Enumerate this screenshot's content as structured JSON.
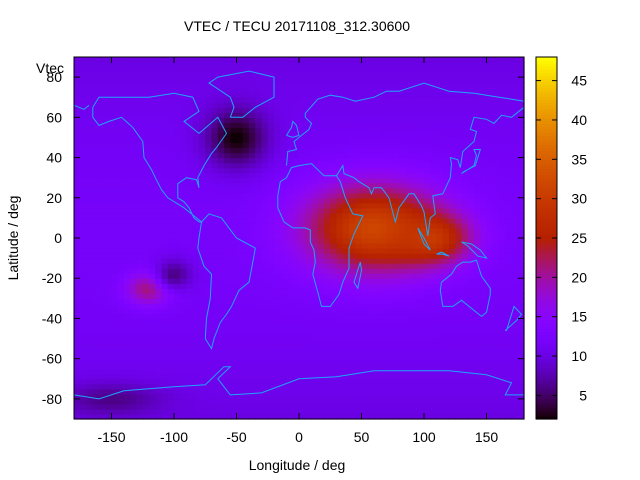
{
  "chart_data": {
    "type": "heatmap",
    "title": "VTEC / TECU 20171108_312.30600",
    "xlabel": "Longitude / deg",
    "ylabel": "Latitude / deg",
    "series_key": "Vtec",
    "xlim": [
      -180,
      180
    ],
    "ylim": [
      -90,
      90
    ],
    "x_ticks": [
      -150,
      -100,
      -50,
      0,
      50,
      100,
      150
    ],
    "x_tick_labels": [
      "-150",
      "-100",
      "-50",
      "0",
      "50",
      "100",
      "150"
    ],
    "y_ticks": [
      -80,
      -60,
      -40,
      -20,
      0,
      20,
      40,
      60,
      80
    ],
    "y_tick_labels": [
      "-80",
      "-60",
      "-40",
      "-20",
      "0",
      "20",
      "40",
      "60",
      "80"
    ],
    "colorbar_range": [
      2,
      48
    ],
    "colorbar_ticks": [
      5,
      10,
      15,
      20,
      25,
      30,
      35,
      40,
      45
    ],
    "colorbar_tick_labels": [
      "5",
      "10",
      "15",
      "20",
      "25",
      "30",
      "35",
      "40",
      "45"
    ],
    "colormap": "gnuplot-rgbformulae-7,5,15",
    "overlay": "coastlines",
    "features": [
      {
        "lon": 60,
        "lat": 5,
        "vtec": 32,
        "spread_lon": 55,
        "spread_lat": 22
      },
      {
        "lon": 105,
        "lat": 0,
        "vtec": 30,
        "spread_lon": 30,
        "spread_lat": 12
      },
      {
        "lon": -120,
        "lat": -25,
        "vtec": 22,
        "spread_lon": 18,
        "spread_lat": 8
      },
      {
        "lon": -50,
        "lat": 50,
        "vtec": 2,
        "spread_lon": 25,
        "spread_lat": 15
      },
      {
        "lon": -100,
        "lat": -18,
        "vtec": 6,
        "spread_lon": 15,
        "spread_lat": 8
      },
      {
        "lon": -150,
        "lat": -80,
        "vtec": 6,
        "spread_lon": 40,
        "spread_lat": 8
      }
    ],
    "background_vtec": 12
  }
}
